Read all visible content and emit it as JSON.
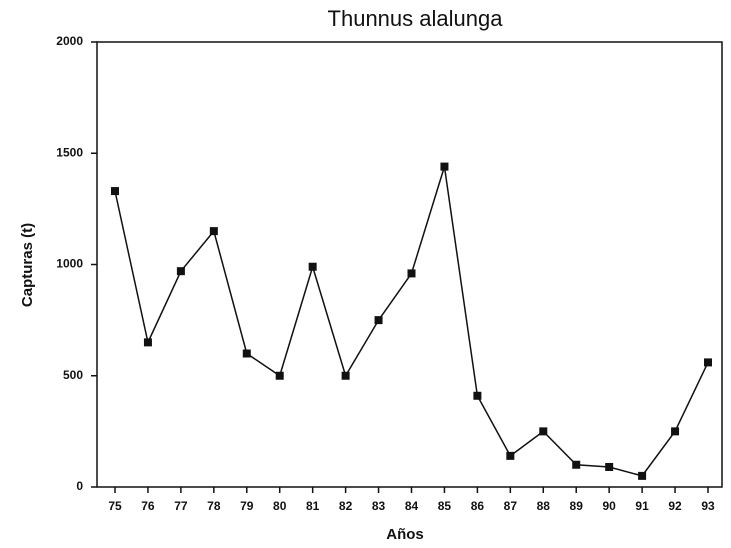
{
  "chart_data": {
    "type": "line",
    "title": "Thunnus alalunga",
    "x_label": "Años",
    "y_label": "Capturas (t)",
    "categories": [
      "75",
      "76",
      "77",
      "78",
      "79",
      "80",
      "81",
      "82",
      "83",
      "84",
      "85",
      "86",
      "87",
      "88",
      "89",
      "90",
      "91",
      "92",
      "93"
    ],
    "series": [
      {
        "name": "Capturas",
        "color": "#111111",
        "values": [
          1330,
          650,
          970,
          1150,
          600,
          500,
          990,
          500,
          750,
          960,
          1440,
          410,
          140,
          250,
          100,
          90,
          50,
          250,
          560
        ]
      }
    ],
    "ylim": [
      0,
      2000
    ],
    "yticks": [
      0,
      500,
      1000,
      1500,
      2000
    ],
    "grid": false
  }
}
